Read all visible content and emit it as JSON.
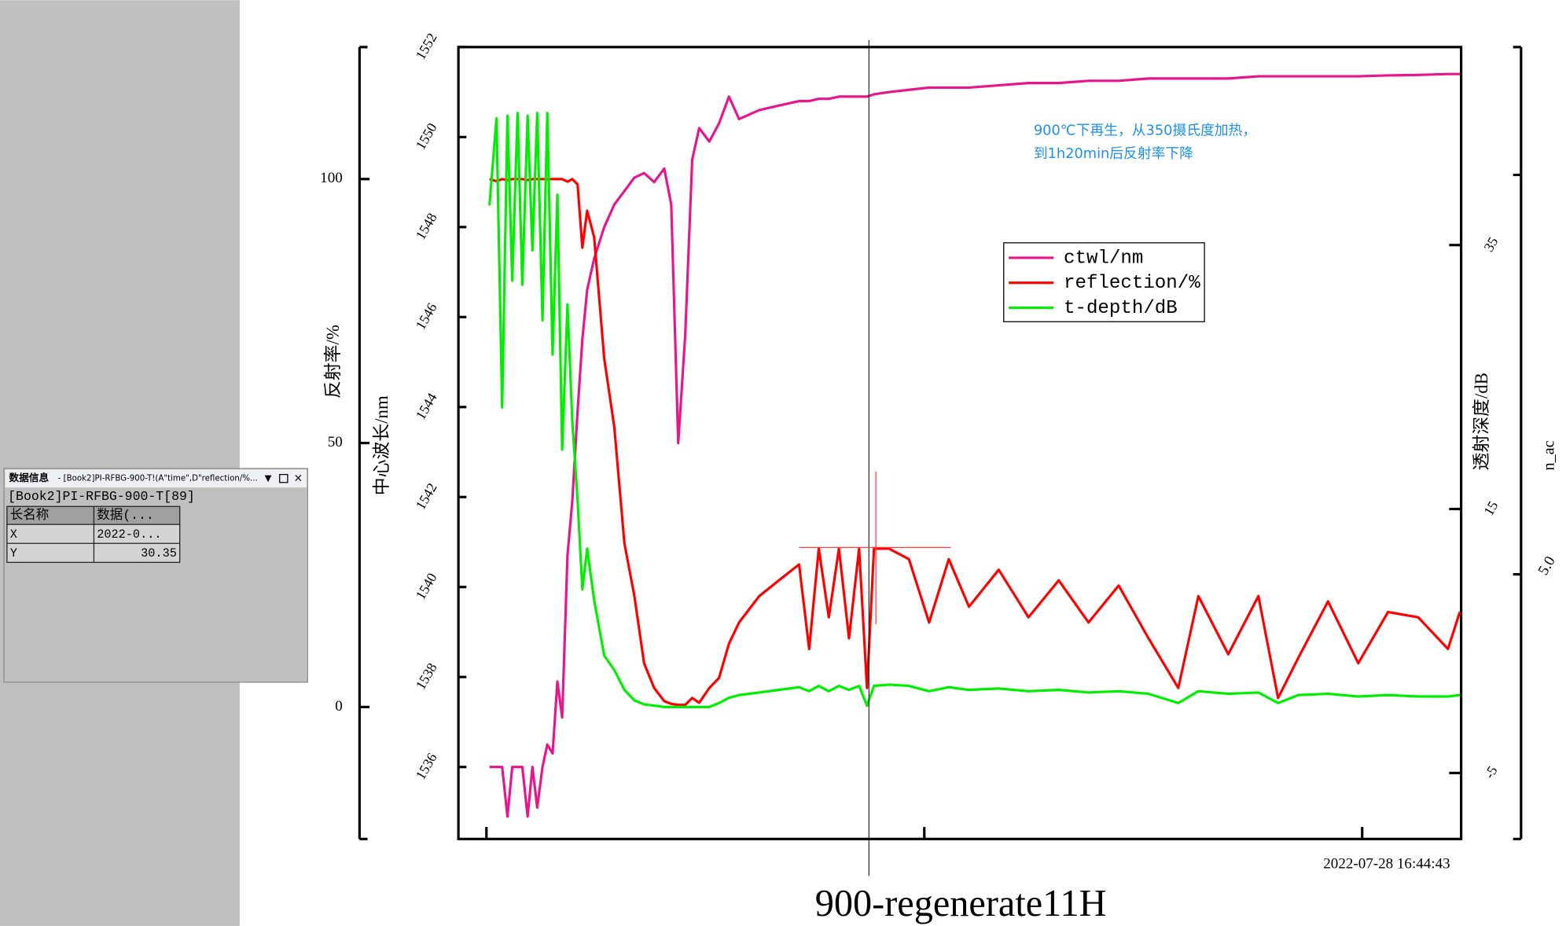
{
  "chart_data": {
    "type": "line",
    "title": "900-regenerate11H",
    "annotations": [
      "900℃下再生，从350摄氏度加热，",
      "到1h20min后反射率下降"
    ],
    "timestamp": "2022-07-28  16:44:43",
    "ylabel": "反射率/%",
    "y2label": "中心波长/nm",
    "y3label": "透射深度/dB",
    "y4label": "n_ac",
    "y4_tick_label": "5.0",
    "x": [
      0.7,
      2.3,
      3.6,
      4.8,
      5.9,
      7.1,
      8.2,
      9.4,
      10.5,
      11.6,
      12.8,
      13.9,
      15.1,
      16.2,
      17.3,
      18.5,
      19.6,
      20.8,
      21.9,
      23.0,
      24.6,
      26.9,
      29.2,
      31.5,
      33.8,
      36.0,
      38.3,
      40.6,
      42.2,
      43.8,
      45.4,
      47.0,
      48.6,
      50.9,
      53.1,
      55.4,
      57.7,
      62.3,
      66.8,
      71.4,
      73.7,
      75.9,
      78.2,
      80.5,
      82.8,
      85.1,
      86.9,
      88.5,
      91.9,
      96.5,
      101.1,
      105.6,
      110.2,
      117.0,
      123.8,
      130.7,
      137.5,
      144.4,
      151.2,
      158.0,
      162.6,
      169.4,
      176.3,
      180.8,
      185.4,
      192.2,
      199.1,
      205.9,
      212.8,
      219.6,
      222.3
    ],
    "xlim": [
      -6.4,
      222.6
    ],
    "xticks": [
      0,
      100,
      200
    ],
    "ylim": [
      -25,
      125
    ],
    "yticks": [
      0,
      50,
      100
    ],
    "y2lim": [
      1534.4,
      1552
    ],
    "y2ticks": [
      1536,
      1538,
      1540,
      1542,
      1544,
      1546,
      1548,
      1550,
      1552
    ],
    "y3lim": [
      -10,
      50
    ],
    "y3ticks": [
      -5,
      15,
      35
    ],
    "series": [
      {
        "name": "ctwl/nm",
        "color": "#e8158b",
        "axis": "y2",
        "values": [
          1536,
          1536,
          1536,
          1534.9,
          1536,
          1536,
          1536,
          1534.9,
          1536,
          1535.1,
          1536,
          1536.5,
          1536.3,
          1537.9,
          1537.1,
          1540.7,
          1541.9,
          1543.9,
          1545.5,
          1546.6,
          1547.3,
          1548.0,
          1548.5,
          1548.8,
          1549.1,
          1549.2,
          1549.0,
          1549.3,
          1548.5,
          1543.2,
          1545.6,
          1549.5,
          1550.2,
          1549.9,
          1550.3,
          1550.9,
          1550.4,
          1550.6,
          1550.7,
          1550.8,
          1550.8,
          1550.85,
          1550.85,
          1550.9,
          1550.9,
          1550.9,
          1550.9,
          1550.95,
          1551.0,
          1551.05,
          1551.1,
          1551.1,
          1551.1,
          1551.15,
          1551.2,
          1551.2,
          1551.25,
          1551.25,
          1551.3,
          1551.3,
          1551.3,
          1551.3,
          1551.35,
          1551.35,
          1551.35,
          1551.35,
          1551.35,
          1551.37,
          1551.38,
          1551.4,
          1551.4
        ]
      },
      {
        "name": "reflection/%",
        "color": "#ff0000",
        "axis": "y",
        "values": [
          100,
          99.6,
          100,
          99.8,
          100,
          100,
          100,
          99.8,
          100,
          100,
          100,
          100,
          100,
          100,
          100,
          99.5,
          100,
          99,
          87,
          94,
          89,
          66,
          53,
          31,
          21,
          8.3,
          3.6,
          1.1,
          0.6,
          0.4,
          0.4,
          1.7,
          0.8,
          3.6,
          5.5,
          12,
          16,
          21,
          24,
          27,
          11,
          30,
          17,
          30,
          13,
          30,
          3.6,
          30,
          30,
          28,
          16,
          28,
          19,
          26,
          17,
          24,
          16,
          23,
          13,
          3.6,
          21,
          10,
          21,
          1.7,
          9.3,
          20,
          8.3,
          18,
          17,
          11,
          18
        ]
      },
      {
        "name": "t-depth/dB",
        "color": "#00ee00",
        "axis": "y3",
        "values": [
          38,
          44.6,
          22.7,
          44.8,
          32.3,
          45,
          32,
          44.8,
          34.6,
          45,
          29.3,
          45,
          26.7,
          38.8,
          19.5,
          30.5,
          21.7,
          15.7,
          8.9,
          12,
          8.1,
          3.9,
          2.8,
          1.3,
          0.5,
          0.2,
          0.1,
          0,
          0,
          0,
          0,
          0,
          0,
          0,
          0.3,
          0.7,
          0.9,
          1.1,
          1.3,
          1.5,
          1.2,
          1.6,
          1.2,
          1.6,
          1.3,
          1.6,
          0.1,
          1.6,
          1.7,
          1.6,
          1.2,
          1.5,
          1.3,
          1.4,
          1.2,
          1.3,
          1.1,
          1.2,
          1.0,
          0.3,
          1.2,
          1.0,
          1.1,
          0.3,
          0.9,
          1.0,
          0.8,
          0.9,
          0.8,
          0.8,
          0.9
        ]
      }
    ]
  },
  "info_window": {
    "title": "数据信息",
    "subtitle": " - [Book2]PI-RFBG-900-T!(A\"time\",D\"reflection/%...",
    "path": "[Book2]PI-RFBG-900-T[89]",
    "table": {
      "header": [
        "长名称",
        "数据(..."
      ],
      "rows": [
        [
          "X",
          "2022-0..."
        ],
        [
          "Y",
          "30.35"
        ]
      ]
    }
  }
}
